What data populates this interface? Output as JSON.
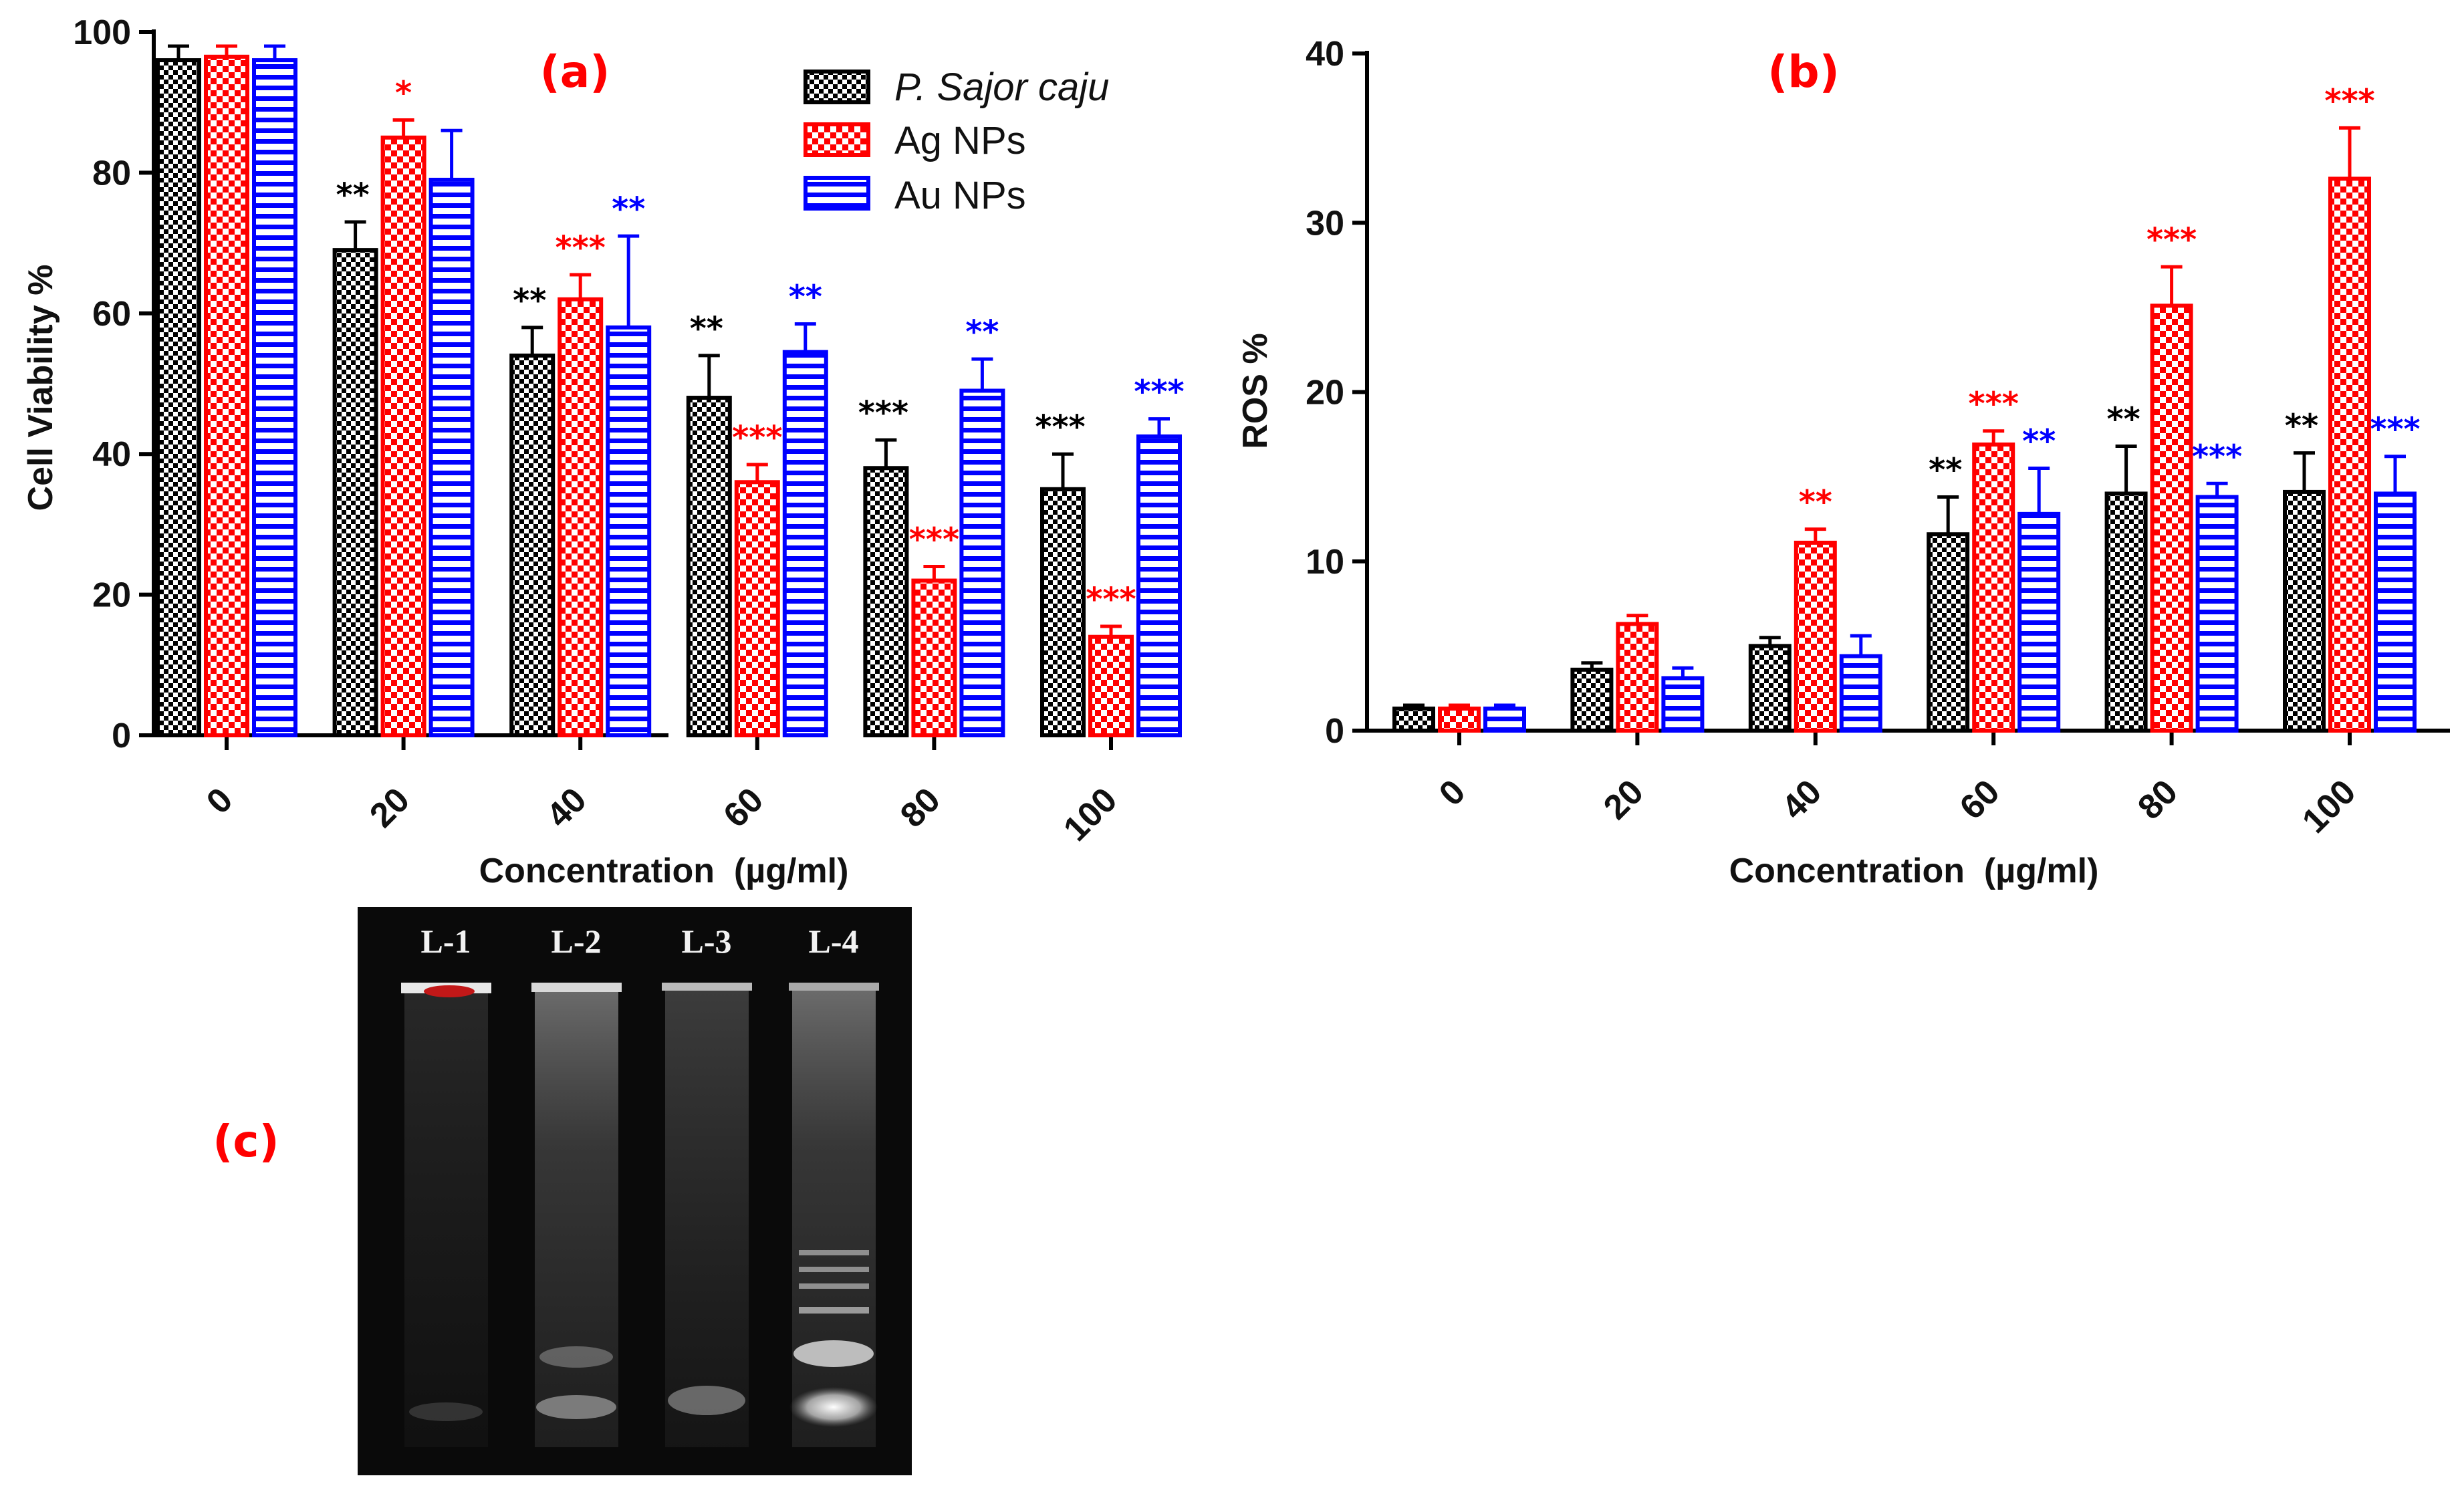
{
  "colors": {
    "pleurotus": "#000000",
    "ag": "#ff0000",
    "au": "#0000ff",
    "panel_label": "#ff0000",
    "gel_background": "#0a0a0a"
  },
  "legend": {
    "entries": [
      {
        "label": "P. Sajor caju",
        "italic": true,
        "series": 0
      },
      {
        "label": "Ag NPs",
        "italic": false,
        "series": 1
      },
      {
        "label": "Au NPs",
        "italic": false,
        "series": 2
      }
    ]
  },
  "chart_data": [
    {
      "panel": "(a)",
      "type": "bar",
      "title": "",
      "xlabel": "Concentration  (µg/ml)",
      "ylabel": "Cell Viability %",
      "ylim": [
        0,
        100
      ],
      "yticks": [
        "0",
        "20",
        "40",
        "60",
        "80",
        "100"
      ],
      "categories": [
        "0",
        "20",
        "40",
        "60",
        "80",
        "100"
      ],
      "series": [
        {
          "name": "P. Sajor caju",
          "values": [
            96,
            69,
            54,
            48,
            38,
            35
          ],
          "errors": [
            2,
            4,
            4,
            6,
            4,
            5
          ],
          "sig": [
            "",
            "**",
            "**",
            "**",
            "***",
            "***"
          ]
        },
        {
          "name": "Ag NPs",
          "values": [
            96.5,
            85,
            62,
            36,
            22,
            14
          ],
          "errors": [
            1.5,
            2.5,
            3.5,
            2.5,
            2,
            1.5
          ],
          "sig": [
            "",
            "*",
            "***",
            "***",
            "***",
            "***"
          ]
        },
        {
          "name": "Au NPs",
          "values": [
            96,
            79,
            58,
            54.5,
            49,
            42.5
          ],
          "errors": [
            2,
            7,
            13,
            4,
            4.5,
            2.5
          ],
          "sig": [
            "",
            "",
            "**",
            "**",
            "**",
            "***"
          ]
        }
      ]
    },
    {
      "panel": "(b)",
      "type": "bar",
      "title": "",
      "xlabel": "Concentration  (µg/ml)",
      "ylabel": "ROS %",
      "ylim": [
        0,
        40
      ],
      "yticks": [
        "0",
        "10",
        "20",
        "30",
        "40"
      ],
      "categories": [
        "0",
        "20",
        "40",
        "60",
        "80",
        "100"
      ],
      "series": [
        {
          "name": "P. Sajor caju",
          "values": [
            1.3,
            3.6,
            5,
            11.6,
            14,
            14.1
          ],
          "errors": [
            0.2,
            0.4,
            0.5,
            2.2,
            2.8,
            2.3
          ],
          "sig": [
            "",
            "",
            "",
            "**",
            "**",
            "**"
          ]
        },
        {
          "name": "Ag NPs",
          "values": [
            1.3,
            6.3,
            11.1,
            16.9,
            25.1,
            32.6
          ],
          "errors": [
            0.2,
            0.5,
            0.8,
            0.8,
            2.3,
            3
          ],
          "sig": [
            "",
            "",
            "**",
            "***",
            "***",
            "***"
          ]
        },
        {
          "name": "Au NPs",
          "values": [
            1.3,
            3.1,
            4.4,
            12.8,
            13.8,
            14
          ],
          "errors": [
            0.2,
            0.6,
            1.2,
            2.7,
            0.8,
            2.2
          ],
          "sig": [
            "",
            "",
            "",
            "**",
            "***",
            "***"
          ]
        }
      ]
    }
  ],
  "gel": {
    "panel": "(c)",
    "lanes": [
      "L-1",
      "L-2",
      "L-3",
      "L-4"
    ]
  }
}
